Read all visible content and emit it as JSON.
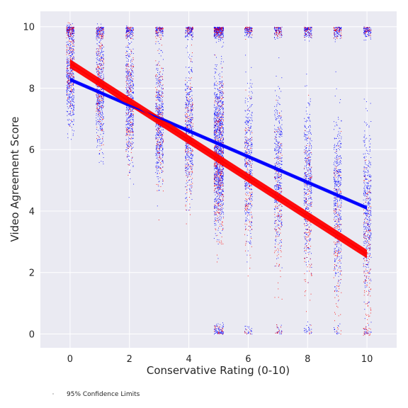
{
  "chart_data": {
    "type": "scatter",
    "title": "",
    "xlabel": "Conservative Rating (0-10)",
    "ylabel": "Video Agreement Score",
    "xlim": [
      -1,
      11
    ],
    "ylim": [
      -0.45,
      10.5
    ],
    "x_ticks": [
      0,
      2,
      4,
      6,
      8,
      10
    ],
    "y_ticks": [
      0,
      2,
      4,
      6,
      8,
      10
    ],
    "grid": true,
    "background": "#eaeaf2",
    "series": [
      {
        "kind": "scatter-jitter",
        "color": "#0000ff",
        "x_categories": [
          0,
          1,
          2,
          3,
          4,
          5,
          6,
          7,
          8,
          9,
          10
        ],
        "y_center": [
          8.3,
          8.0,
          7.5,
          7.0,
          6.6,
          6.1,
          5.7,
          5.3,
          4.9,
          4.5,
          4.1
        ],
        "y_spread": [
          1.7,
          1.9,
          2.0,
          2.1,
          2.2,
          2.4,
          2.5,
          2.6,
          2.6,
          2.7,
          2.8
        ]
      },
      {
        "kind": "scatter-jitter",
        "color": "#ff0000",
        "x_categories": [
          0,
          1,
          2,
          3,
          4,
          5,
          6,
          7,
          8,
          9,
          10
        ],
        "y_center": [
          8.8,
          8.2,
          7.5,
          6.9,
          6.3,
          5.7,
          5.0,
          4.4,
          3.8,
          3.2,
          2.6
        ],
        "y_spread": [
          1.6,
          1.8,
          2.0,
          2.1,
          2.3,
          2.5,
          2.6,
          2.7,
          2.8,
          2.9,
          3.0
        ]
      },
      {
        "kind": "regression",
        "color": "#0000ff",
        "x": [
          0,
          10
        ],
        "y": [
          8.28,
          4.1
        ],
        "ci_halfwidth": [
          0.06,
          0.06
        ]
      },
      {
        "kind": "regression",
        "color": "#ff0000",
        "x": [
          0,
          10
        ],
        "y": [
          8.8,
          2.6
        ],
        "ci_halfwidth": [
          0.14,
          0.14
        ]
      }
    ],
    "legend": {
      "placement": "bottom-left",
      "entries": [
        "95% Confidence Limits"
      ]
    }
  }
}
